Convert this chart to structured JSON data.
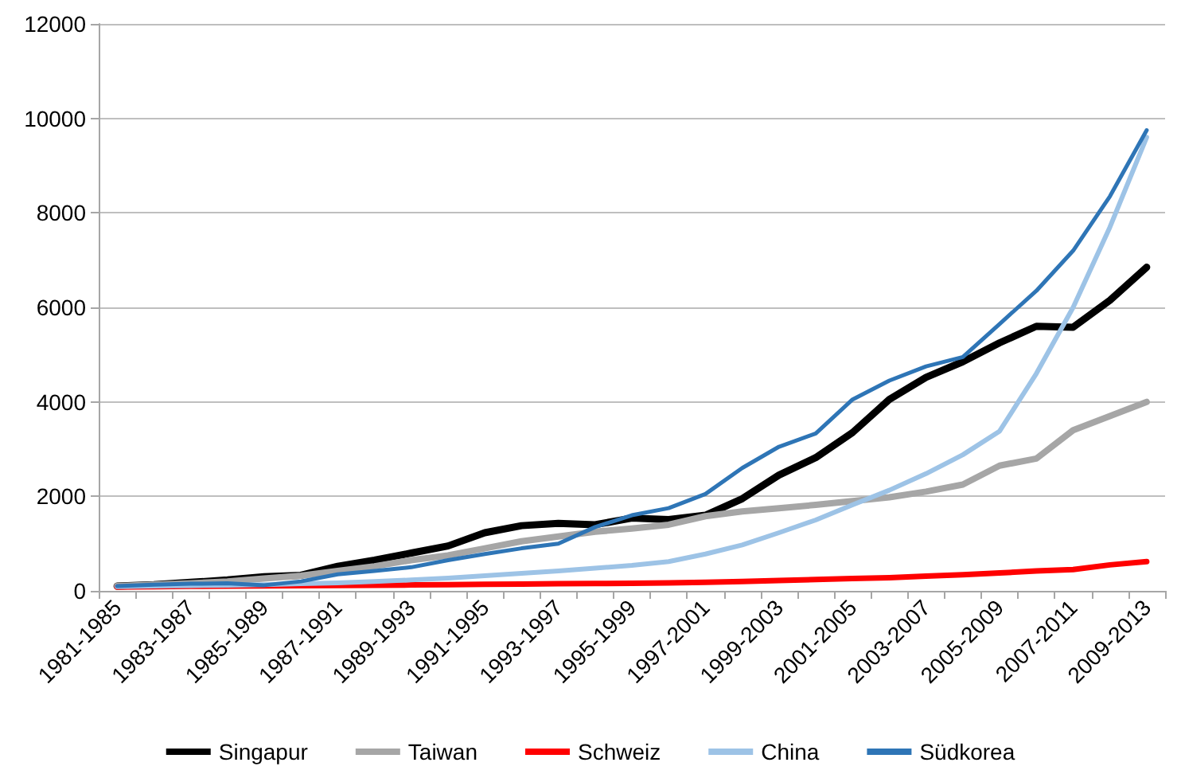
{
  "chart_data": {
    "type": "line",
    "categories": [
      "1981-1985",
      null,
      "1983-1987",
      null,
      "1985-1989",
      null,
      "1987-1991",
      null,
      "1989-1993",
      null,
      "1991-1995",
      null,
      "1993-1997",
      null,
      "1995-1999",
      null,
      "1997-2001",
      null,
      "1999-2003",
      null,
      "2001-2005",
      null,
      "2003-2007",
      null,
      "2005-2009",
      null,
      "2007-2011",
      null,
      "2009-2013"
    ],
    "series": [
      {
        "name": "Singapur",
        "color": "#000000",
        "values": [
          100,
          130,
          180,
          230,
          300,
          330,
          520,
          650,
          800,
          950,
          1230,
          1380,
          1430,
          1400,
          1540,
          1510,
          1600,
          1950,
          2450,
          2820,
          3350,
          4050,
          4520,
          4850,
          5250,
          5600,
          5580,
          6150,
          6850
        ]
      },
      {
        "name": "Taiwan",
        "color": "#a6a6a6",
        "values": [
          100,
          130,
          160,
          200,
          260,
          320,
          420,
          520,
          650,
          750,
          900,
          1050,
          1150,
          1250,
          1320,
          1400,
          1580,
          1680,
          1750,
          1820,
          1900,
          1980,
          2100,
          2250,
          2650,
          2800,
          3400,
          3700,
          4000
        ]
      },
      {
        "name": "Schweiz",
        "color": "#ff0000",
        "values": [
          80,
          90,
          95,
          100,
          105,
          110,
          115,
          120,
          125,
          130,
          140,
          145,
          150,
          155,
          160,
          170,
          180,
          200,
          220,
          240,
          260,
          280,
          310,
          340,
          380,
          420,
          450,
          550,
          620
        ]
      },
      {
        "name": "China",
        "color": "#9dc3e6",
        "values": [
          90,
          100,
          110,
          120,
          130,
          150,
          170,
          200,
          230,
          270,
          320,
          370,
          420,
          480,
          540,
          620,
          780,
          970,
          1230,
          1500,
          1820,
          2130,
          2480,
          2880,
          3380,
          4600,
          6000,
          7700,
          9600
        ]
      },
      {
        "name": "Südkorea",
        "color": "#2e75b6",
        "values": [
          100,
          130,
          150,
          160,
          120,
          200,
          350,
          420,
          500,
          650,
          780,
          900,
          1000,
          1350,
          1600,
          1750,
          2050,
          2600,
          3050,
          3330,
          4050,
          4450,
          4750,
          4950,
          5650,
          6350,
          7200,
          8350,
          9750
        ]
      }
    ],
    "ylim": [
      0,
      12000
    ],
    "yticks": [
      0,
      2000,
      4000,
      6000,
      8000,
      10000,
      12000
    ],
    "grid": "y",
    "legend": "bottom",
    "marker": "none",
    "line_style": "solid"
  }
}
